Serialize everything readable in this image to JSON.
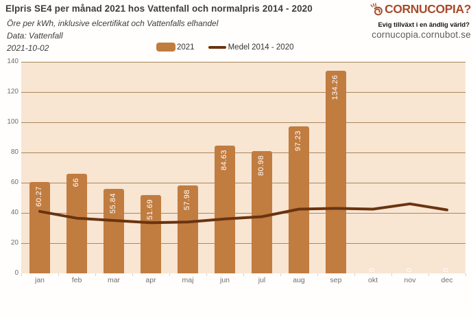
{
  "header": {
    "title": "Elpris SE4 per månad 2021 hos Vattenfall och normalpris 2014 - 2020",
    "subtitle": "Öre per kWh, inklusive elcertifikat och Vattenfalls elhandel",
    "source": "Data: Vattenfall",
    "date": "2021-10-02"
  },
  "logo": {
    "name": "CORNUCOPIA?",
    "tagline": "Evig tillväxt i en ändlig värld?",
    "url": "cornucopia.cornubot.se",
    "brand_color": "#a64b2b",
    "icon": "cornucopia-horn-icon"
  },
  "legend": {
    "bar_label": "2021",
    "line_label": "Medel 2014 - 2020"
  },
  "chart_data": {
    "type": "bar",
    "categories": [
      "jan",
      "feb",
      "mar",
      "apr",
      "maj",
      "jun",
      "jul",
      "aug",
      "sep",
      "okt",
      "nov",
      "dec"
    ],
    "series": [
      {
        "name": "2021",
        "type": "bar",
        "color": "#c17c40",
        "values": [
          60.27,
          66,
          55.84,
          51.69,
          57.98,
          84.63,
          80.98,
          97.23,
          134.26,
          0,
          0,
          0
        ],
        "labels": [
          "60.27",
          "66",
          "55.84",
          "51.69",
          "57.98",
          "84.63",
          "80.98",
          "97.23",
          "134.26",
          "0",
          "0",
          "0"
        ]
      },
      {
        "name": "Medel 2014 - 2020",
        "type": "line",
        "color": "#6a3310",
        "values": [
          41,
          36.5,
          35,
          33.5,
          34,
          36,
          37.5,
          42.5,
          43,
          42.5,
          46,
          42
        ]
      }
    ],
    "title": "Elpris SE4 per månad 2021 hos Vattenfall och normalpris 2014 - 2020",
    "xlabel": "",
    "ylabel": "Öre per kWh",
    "ylim": [
      0,
      140
    ],
    "yticks": [
      0,
      20,
      40,
      60,
      80,
      100,
      120,
      140
    ],
    "grid": true,
    "legend_position": "top",
    "plot_bg": "#f8e5d2",
    "grid_color": "#a8875c",
    "value_label_color": "#ffffff"
  }
}
